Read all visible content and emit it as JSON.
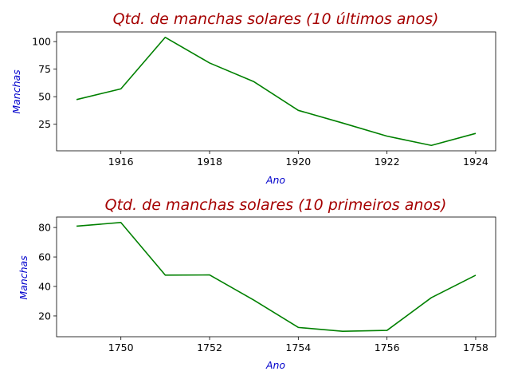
{
  "colors": {
    "title": "#a50000",
    "axis_label": "#0000cc",
    "line": "#008000"
  },
  "chart_data": [
    {
      "type": "line",
      "title": "Qtd. de manchas solares (10 últimos anos)",
      "xlabel": "Ano",
      "ylabel": "Manchas",
      "x": [
        1915,
        1916,
        1917,
        1918,
        1919,
        1920,
        1921,
        1922,
        1923,
        1924
      ],
      "series": [
        {
          "values": [
            47.4,
            57.1,
            103.9,
            80.6,
            63.6,
            37.6,
            26.1,
            14.2,
            5.8,
            16.7
          ]
        }
      ],
      "xlim": [
        1914.55,
        1924.45
      ],
      "ylim": [
        0.9,
        108.8
      ],
      "xticks": [
        1916,
        1918,
        1920,
        1922,
        1924
      ],
      "yticks": [
        25,
        50,
        75,
        100
      ],
      "grid": false,
      "legend": false
    },
    {
      "type": "line",
      "title": "Qtd. de manchas solares (10 primeiros anos)",
      "xlabel": "Ano",
      "ylabel": "Manchas",
      "x": [
        1749,
        1750,
        1751,
        1752,
        1753,
        1754,
        1755,
        1756,
        1757,
        1758
      ],
      "series": [
        {
          "values": [
            80.9,
            83.4,
            47.7,
            47.8,
            30.7,
            12.2,
            9.6,
            10.2,
            32.4,
            47.6
          ]
        }
      ],
      "xlim": [
        1748.55,
        1758.45
      ],
      "ylim": [
        5.9,
        87.1
      ],
      "xticks": [
        1750,
        1752,
        1754,
        1756,
        1758
      ],
      "yticks": [
        20,
        40,
        60,
        80
      ],
      "grid": false,
      "legend": false
    }
  ]
}
